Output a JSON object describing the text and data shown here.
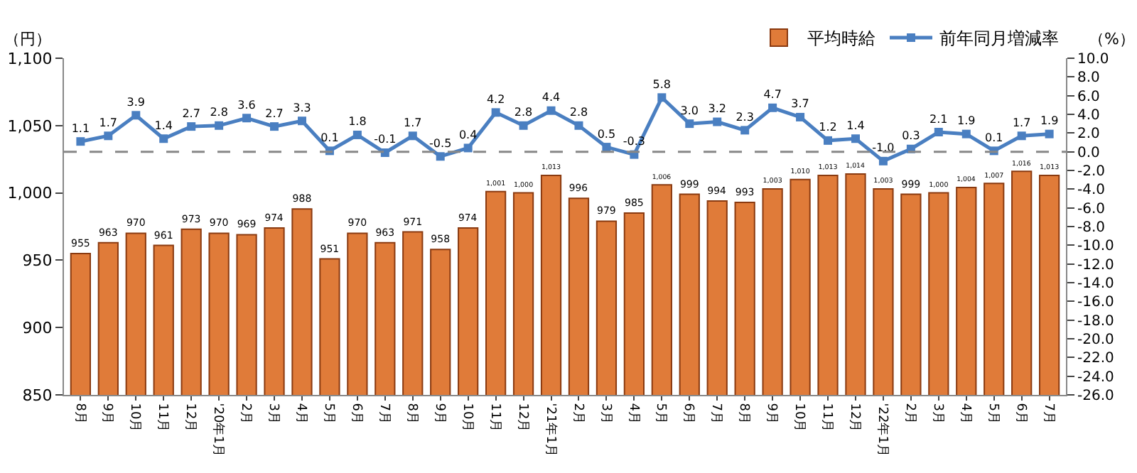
{
  "chart_data": {
    "type": "bar",
    "ylabel": "（円）",
    "y2label": "（%）",
    "categories": [
      "8月",
      "9月",
      "10月",
      "11月",
      "12月",
      "'20年1月",
      "2月",
      "3月",
      "4月",
      "5月",
      "6月",
      "7月",
      "8月",
      "9月",
      "10月",
      "11月",
      "12月",
      "'21年1月",
      "2月",
      "3月",
      "4月",
      "5月",
      "6月",
      "7月",
      "8月",
      "9月",
      "10月",
      "11月",
      "12月",
      "'22年1月",
      "2月",
      "3月",
      "4月",
      "5月",
      "6月",
      "7月"
    ],
    "series": [
      {
        "name": "平均時給",
        "color": "#e07b39",
        "values": [
          955,
          963,
          970,
          961,
          973,
          970,
          969,
          974,
          988,
          951,
          970,
          963,
          971,
          958,
          974,
          1001,
          1000,
          1013,
          996,
          979,
          985,
          1006,
          999,
          994,
          993,
          1003,
          1010,
          1013,
          1014,
          1003,
          999,
          1000,
          1004,
          1007,
          1016,
          1013
        ],
        "value_labels": [
          "955",
          "963",
          "970",
          "961",
          "973",
          "970",
          "969",
          "974",
          "988",
          "951",
          "970",
          "963",
          "971",
          "958",
          "974",
          "1,001",
          "1,000",
          "1,013",
          "996",
          "979",
          "985",
          "1,006",
          "999",
          "994",
          "993",
          "1,003",
          "1,010",
          "1,013",
          "1,014",
          "1,003",
          "999",
          "1,000",
          "1,004",
          "1,007",
          "1,016",
          "1,013"
        ]
      },
      {
        "name": "前年同月増減率",
        "type": "line",
        "axis": "y2",
        "color": "#4a7fc1",
        "values": [
          1.1,
          1.7,
          3.9,
          1.4,
          2.7,
          2.8,
          3.6,
          2.7,
          3.3,
          0.1,
          1.8,
          -0.1,
          1.7,
          -0.5,
          0.4,
          4.2,
          2.8,
          4.4,
          2.8,
          0.5,
          -0.3,
          5.8,
          3.0,
          3.2,
          2.3,
          4.7,
          3.7,
          1.2,
          1.4,
          -1.0,
          0.3,
          2.1,
          1.9,
          0.1,
          1.7,
          1.9
        ],
        "value_labels": [
          "1.1",
          "1.7",
          "3.9",
          "1.4",
          "2.7",
          "2.8",
          "3.6",
          "2.7",
          "3.3",
          "0.1",
          "1.8",
          "-0.1",
          "1.7",
          "-0.5",
          "0.4",
          "4.2",
          "2.8",
          "4.4",
          "2.8",
          "0.5",
          "-0.3",
          "5.8",
          "3.0",
          "3.2",
          "2.3",
          "4.7",
          "3.7",
          "1.2",
          "1.4",
          "-1.0",
          "0.3",
          "2.1",
          "1.9",
          "0.1",
          "1.7",
          "1.9"
        ]
      }
    ],
    "ylim": [
      850,
      1100
    ],
    "yticks": [
      850,
      900,
      950,
      {
        "value": 1000,
        "label": "1,000"
      },
      {
        "value": 1050,
        "label": "1,050"
      },
      {
        "value": 1100,
        "label": "1,100"
      }
    ],
    "y2lim": [
      -26,
      10
    ],
    "y2ticks": [
      {
        "value": 10,
        "label": "10.0"
      },
      {
        "value": 8,
        "label": "8.0"
      },
      {
        "value": 6,
        "label": "6.0"
      },
      {
        "value": 4,
        "label": "4.0"
      },
      {
        "value": 2,
        "label": "2.0"
      },
      {
        "value": 0,
        "label": "0.0"
      },
      {
        "value": -2,
        "label": "-2.0"
      },
      {
        "value": -4,
        "label": "-4.0"
      },
      {
        "value": -6,
        "label": "-6.0"
      },
      {
        "value": -8,
        "label": "-8.0"
      },
      {
        "value": -10,
        "label": "-10.0"
      },
      {
        "value": -12,
        "label": "-12.0"
      },
      {
        "value": -14,
        "label": "-14.0"
      },
      {
        "value": -16,
        "label": "-16.0"
      },
      {
        "value": -18,
        "label": "-18.0"
      },
      {
        "value": -20,
        "label": "-20.0"
      },
      {
        "value": -22,
        "label": "-22.0"
      },
      {
        "value": -24,
        "label": "-24.0"
      },
      {
        "value": -26,
        "label": "-26.0"
      }
    ],
    "ref_lines": [
      {
        "axis": "y2",
        "value": 0,
        "color": "#888888",
        "line_style": "dashed"
      }
    ],
    "marker": "square",
    "line_style": "solid",
    "grid": false,
    "legend": "top right"
  }
}
